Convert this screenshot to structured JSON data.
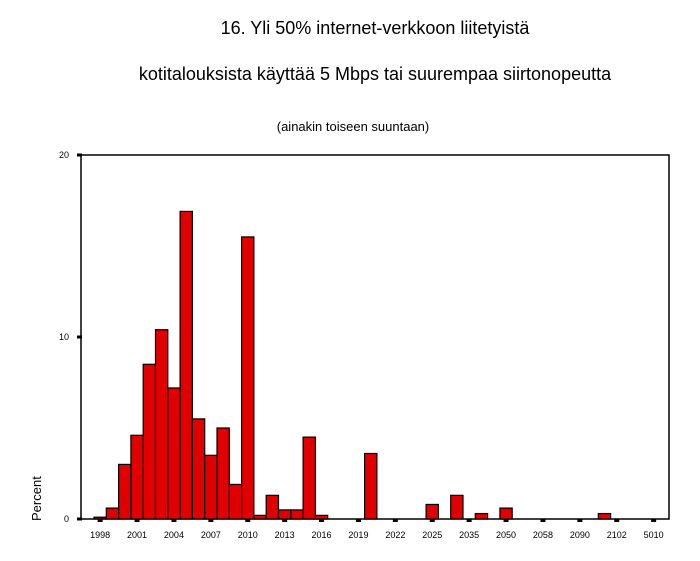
{
  "chart_data": {
    "type": "bar",
    "title_line1": "16. Yli 50% internet-verkkoon liitetyistä",
    "title_line2": "kotitalouksista käyttää 5 Mbps tai suurempaa siirtonopeutta",
    "subtitle": "(ainakin toiseen suuntaan)",
    "xlabel": "",
    "ylabel": "Percent",
    "ylim": [
      0,
      20
    ],
    "yticks": [
      0,
      10,
      20
    ],
    "bar_color": "#e00000",
    "x_tick_labels": [
      "1998",
      "2001",
      "2004",
      "2007",
      "2010",
      "2013",
      "2016",
      "2019",
      "2022",
      "2025",
      "2035",
      "2050",
      "2058",
      "2090",
      "2102",
      "5010"
    ],
    "values": [
      0.1,
      0.6,
      3.0,
      4.6,
      8.5,
      10.4,
      7.2,
      16.9,
      5.5,
      3.5,
      5.0,
      1.9,
      15.5,
      0.2,
      1.3,
      0.5,
      0.5,
      4.5,
      0.2,
      0.0,
      0.0,
      0.0,
      3.6,
      0.0,
      0.0,
      0.0,
      0.0,
      0.8,
      0.0,
      1.3,
      0.0,
      0.3,
      0.0,
      0.6,
      0.0,
      0.0,
      0.0,
      0.0,
      0.0,
      0.0,
      0.0,
      0.3,
      0.0,
      0.0,
      0.0,
      0.0,
      0.0,
      0.0
    ]
  }
}
